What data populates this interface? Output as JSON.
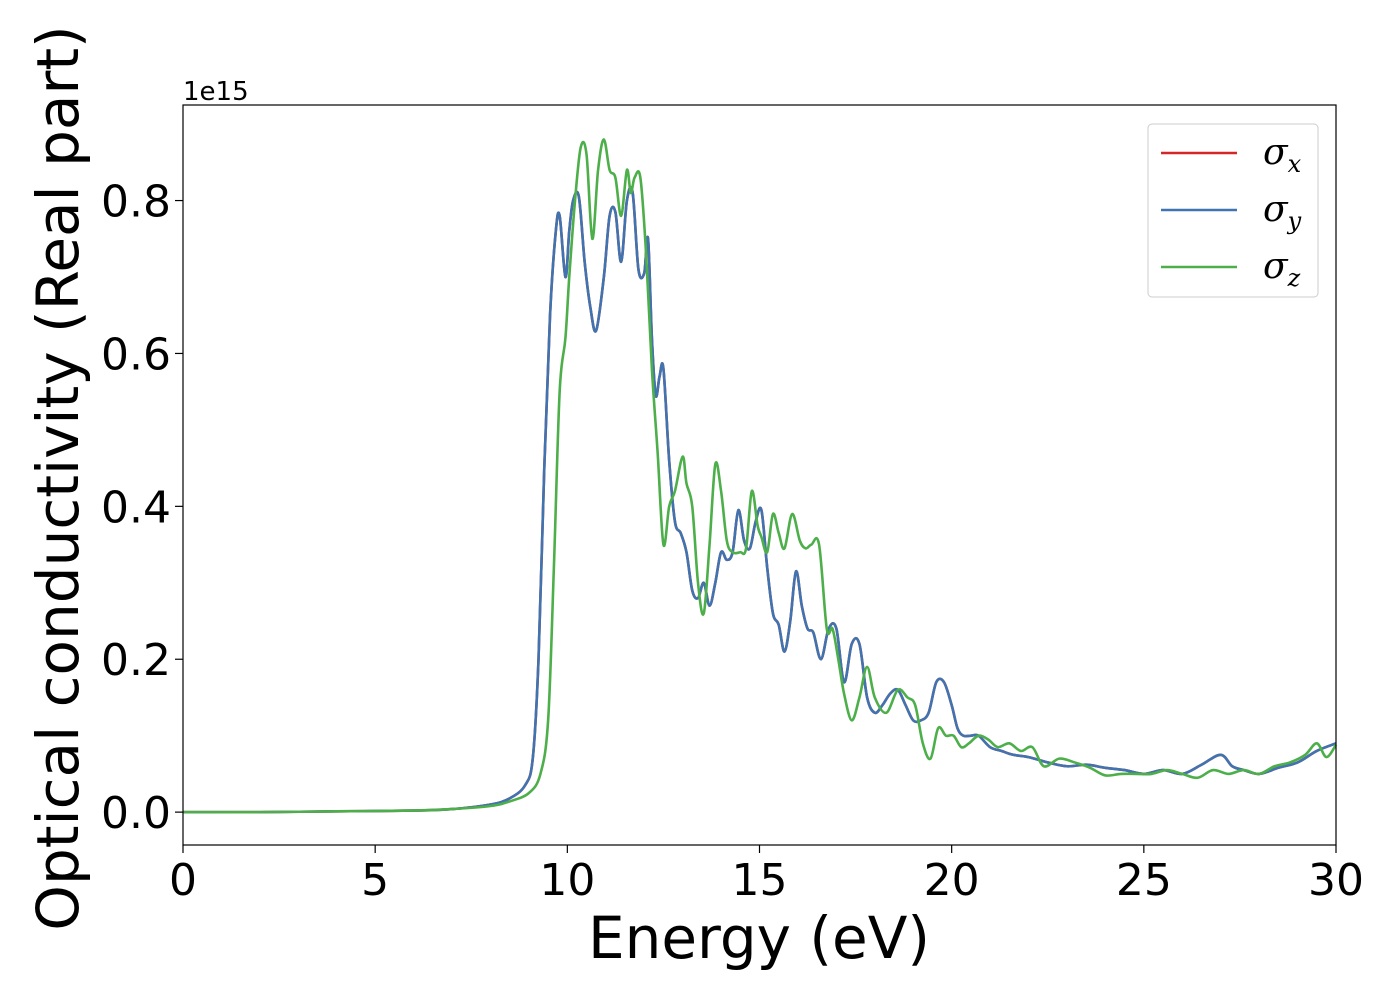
{
  "chart_data": {
    "type": "line",
    "title": "",
    "xlabel": "Energy (eV)",
    "ylabel": "Optical conductivity (Real part)",
    "y_offset_label": "1e15",
    "xlim": [
      0,
      30
    ],
    "ylim": [
      -0.043,
      0.925
    ],
    "xticks": [
      0,
      5,
      10,
      15,
      20,
      25,
      30
    ],
    "xtick_labels": [
      "0",
      "5",
      "10",
      "15",
      "20",
      "25",
      "30"
    ],
    "yticks": [
      0.0,
      0.2,
      0.4,
      0.6,
      0.8
    ],
    "ytick_labels": [
      "0.0",
      "0.2",
      "0.4",
      "0.6",
      "0.8"
    ],
    "grid": false,
    "legend": "top-right",
    "series": [
      {
        "name": "σx",
        "name_base": "σ",
        "name_sub": "x",
        "color": "#d62728",
        "x": [
          0,
          2,
          4,
          6,
          7,
          8,
          8.5,
          8.9,
          9.1,
          9.25,
          9.4,
          9.55,
          9.7,
          9.8,
          9.95,
          10.05,
          10.15,
          10.3,
          10.45,
          10.6,
          10.75,
          10.95,
          11.1,
          11.25,
          11.4,
          11.55,
          11.7,
          11.85,
          12.0,
          12.1,
          12.2,
          12.3,
          12.4,
          12.5,
          12.65,
          12.8,
          12.95,
          13.1,
          13.25,
          13.4,
          13.55,
          13.7,
          13.85,
          14.0,
          14.15,
          14.3,
          14.45,
          14.6,
          14.75,
          14.9,
          15.05,
          15.2,
          15.35,
          15.5,
          15.65,
          15.8,
          15.95,
          16.1,
          16.25,
          16.4,
          16.6,
          16.8,
          17.0,
          17.2,
          17.4,
          17.6,
          17.8,
          18.0,
          18.2,
          18.4,
          18.6,
          18.8,
          19.0,
          19.2,
          19.4,
          19.6,
          19.8,
          20.0,
          20.15,
          20.3,
          20.5,
          20.7,
          21.0,
          21.3,
          21.6,
          22.0,
          22.5,
          23.0,
          23.5,
          24.0,
          24.5,
          25.0,
          25.5,
          26.0,
          26.5,
          27.0,
          27.3,
          27.6,
          28.0,
          28.5,
          29.0,
          29.5,
          30.0
        ],
        "y": [
          0.0,
          0.0,
          0.001,
          0.002,
          0.004,
          0.01,
          0.018,
          0.035,
          0.07,
          0.2,
          0.45,
          0.65,
          0.76,
          0.78,
          0.7,
          0.76,
          0.8,
          0.805,
          0.72,
          0.66,
          0.63,
          0.7,
          0.78,
          0.785,
          0.72,
          0.8,
          0.81,
          0.71,
          0.705,
          0.75,
          0.62,
          0.545,
          0.57,
          0.58,
          0.46,
          0.38,
          0.365,
          0.34,
          0.29,
          0.28,
          0.3,
          0.27,
          0.3,
          0.34,
          0.33,
          0.34,
          0.395,
          0.355,
          0.345,
          0.38,
          0.395,
          0.32,
          0.26,
          0.245,
          0.21,
          0.25,
          0.315,
          0.27,
          0.24,
          0.235,
          0.2,
          0.24,
          0.24,
          0.17,
          0.22,
          0.22,
          0.15,
          0.13,
          0.14,
          0.155,
          0.16,
          0.14,
          0.12,
          0.12,
          0.13,
          0.17,
          0.17,
          0.14,
          0.11,
          0.1,
          0.1,
          0.1,
          0.085,
          0.08,
          0.075,
          0.072,
          0.065,
          0.06,
          0.062,
          0.058,
          0.055,
          0.05,
          0.055,
          0.05,
          0.062,
          0.075,
          0.06,
          0.055,
          0.05,
          0.058,
          0.065,
          0.08,
          0.09
        ]
      },
      {
        "name": "σy",
        "name_base": "σ",
        "name_sub": "y",
        "color": "#3f74b0",
        "x": [
          0,
          2,
          4,
          6,
          7,
          8,
          8.5,
          8.9,
          9.1,
          9.25,
          9.4,
          9.55,
          9.7,
          9.8,
          9.95,
          10.05,
          10.15,
          10.3,
          10.45,
          10.6,
          10.75,
          10.95,
          11.1,
          11.25,
          11.4,
          11.55,
          11.7,
          11.85,
          12.0,
          12.1,
          12.2,
          12.3,
          12.4,
          12.5,
          12.65,
          12.8,
          12.95,
          13.1,
          13.25,
          13.4,
          13.55,
          13.7,
          13.85,
          14.0,
          14.15,
          14.3,
          14.45,
          14.6,
          14.75,
          14.9,
          15.05,
          15.2,
          15.35,
          15.5,
          15.65,
          15.8,
          15.95,
          16.1,
          16.25,
          16.4,
          16.6,
          16.8,
          17.0,
          17.2,
          17.4,
          17.6,
          17.8,
          18.0,
          18.2,
          18.4,
          18.6,
          18.8,
          19.0,
          19.2,
          19.4,
          19.6,
          19.8,
          20.0,
          20.15,
          20.3,
          20.5,
          20.7,
          21.0,
          21.3,
          21.6,
          22.0,
          22.5,
          23.0,
          23.5,
          24.0,
          24.5,
          25.0,
          25.5,
          26.0,
          26.5,
          27.0,
          27.3,
          27.6,
          28.0,
          28.5,
          29.0,
          29.5,
          30.0
        ],
        "y": [
          0.0,
          0.0,
          0.001,
          0.002,
          0.004,
          0.01,
          0.018,
          0.035,
          0.07,
          0.2,
          0.45,
          0.65,
          0.76,
          0.78,
          0.7,
          0.76,
          0.8,
          0.805,
          0.72,
          0.66,
          0.63,
          0.7,
          0.78,
          0.785,
          0.72,
          0.8,
          0.81,
          0.71,
          0.705,
          0.75,
          0.62,
          0.545,
          0.57,
          0.58,
          0.46,
          0.38,
          0.365,
          0.34,
          0.29,
          0.28,
          0.3,
          0.27,
          0.3,
          0.34,
          0.33,
          0.34,
          0.395,
          0.355,
          0.345,
          0.38,
          0.395,
          0.32,
          0.26,
          0.245,
          0.21,
          0.25,
          0.315,
          0.27,
          0.24,
          0.235,
          0.2,
          0.24,
          0.24,
          0.17,
          0.22,
          0.22,
          0.15,
          0.13,
          0.14,
          0.155,
          0.16,
          0.14,
          0.12,
          0.12,
          0.13,
          0.17,
          0.17,
          0.14,
          0.11,
          0.1,
          0.1,
          0.1,
          0.085,
          0.08,
          0.075,
          0.072,
          0.065,
          0.06,
          0.062,
          0.058,
          0.055,
          0.05,
          0.055,
          0.05,
          0.062,
          0.075,
          0.06,
          0.055,
          0.05,
          0.058,
          0.065,
          0.08,
          0.09
        ]
      },
      {
        "name": "σz",
        "name_base": "σ",
        "name_sub": "z",
        "color": "#4daf4a",
        "x": [
          0,
          2,
          4,
          6,
          7,
          8,
          8.5,
          9.0,
          9.3,
          9.5,
          9.65,
          9.8,
          9.95,
          10.05,
          10.2,
          10.35,
          10.5,
          10.65,
          10.8,
          10.95,
          11.1,
          11.25,
          11.4,
          11.55,
          11.65,
          11.75,
          11.9,
          12.05,
          12.2,
          12.35,
          12.5,
          12.65,
          12.8,
          13.0,
          13.1,
          13.25,
          13.4,
          13.55,
          13.7,
          13.85,
          14.0,
          14.15,
          14.3,
          14.5,
          14.65,
          14.8,
          14.95,
          15.05,
          15.2,
          15.35,
          15.5,
          15.65,
          15.85,
          16.05,
          16.2,
          16.35,
          16.55,
          16.75,
          16.9,
          17.05,
          17.2,
          17.4,
          17.6,
          17.8,
          18.0,
          18.3,
          18.6,
          18.85,
          19.05,
          19.25,
          19.45,
          19.65,
          19.85,
          20.05,
          20.25,
          20.45,
          20.7,
          20.95,
          21.2,
          21.5,
          21.8,
          22.1,
          22.4,
          22.8,
          23.2,
          23.6,
          24.0,
          24.4,
          24.8,
          25.2,
          25.6,
          26.0,
          26.4,
          26.8,
          27.2,
          27.6,
          28.0,
          28.4,
          28.8,
          29.2,
          29.5,
          29.75,
          30.0
        ],
        "y": [
          0.0,
          0.0,
          0.001,
          0.002,
          0.004,
          0.008,
          0.014,
          0.025,
          0.05,
          0.12,
          0.32,
          0.55,
          0.62,
          0.7,
          0.8,
          0.87,
          0.86,
          0.75,
          0.84,
          0.88,
          0.84,
          0.83,
          0.78,
          0.84,
          0.81,
          0.83,
          0.83,
          0.73,
          0.58,
          0.47,
          0.35,
          0.4,
          0.42,
          0.465,
          0.43,
          0.4,
          0.3,
          0.26,
          0.35,
          0.455,
          0.42,
          0.355,
          0.34,
          0.34,
          0.345,
          0.42,
          0.375,
          0.36,
          0.34,
          0.39,
          0.365,
          0.345,
          0.39,
          0.355,
          0.345,
          0.35,
          0.35,
          0.24,
          0.24,
          0.2,
          0.155,
          0.12,
          0.15,
          0.19,
          0.15,
          0.13,
          0.16,
          0.15,
          0.14,
          0.09,
          0.07,
          0.11,
          0.1,
          0.1,
          0.085,
          0.09,
          0.1,
          0.095,
          0.085,
          0.09,
          0.08,
          0.085,
          0.06,
          0.07,
          0.065,
          0.058,
          0.048,
          0.05,
          0.05,
          0.05,
          0.055,
          0.05,
          0.045,
          0.055,
          0.05,
          0.055,
          0.05,
          0.06,
          0.065,
          0.075,
          0.09,
          0.072,
          0.088
        ]
      }
    ]
  }
}
